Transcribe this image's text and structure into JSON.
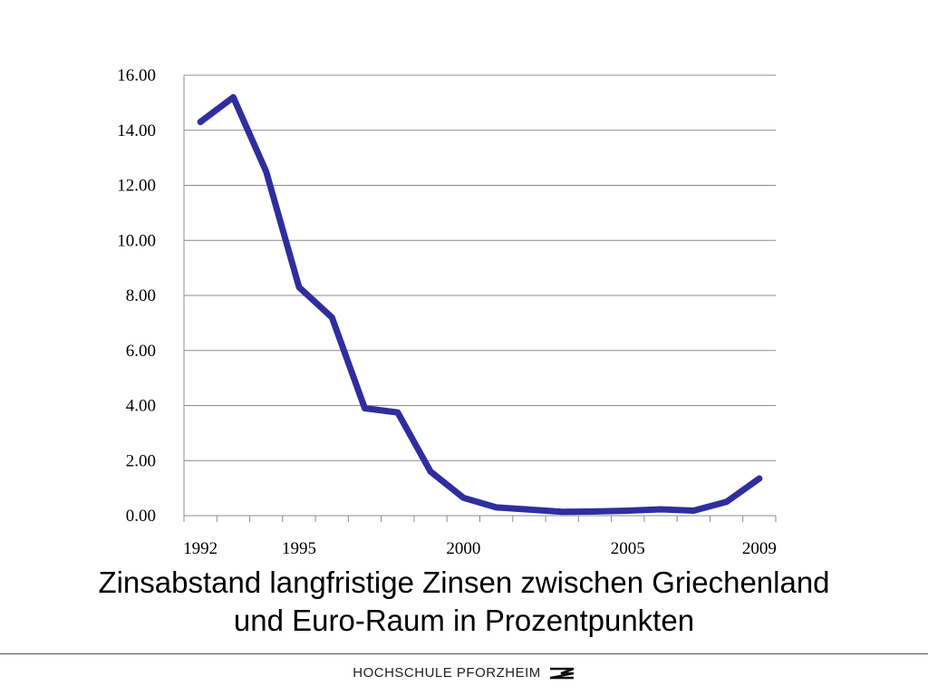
{
  "chart_data": {
    "type": "line",
    "x": [
      1992,
      1993,
      1994,
      1995,
      1996,
      1997,
      1998,
      1999,
      2000,
      2001,
      2002,
      2003,
      2004,
      2005,
      2006,
      2007,
      2008,
      2009
    ],
    "series": [
      {
        "values": [
          14.3,
          15.2,
          12.5,
          8.3,
          7.2,
          3.9,
          3.75,
          1.6,
          0.65,
          0.3,
          0.22,
          0.14,
          0.15,
          0.18,
          0.23,
          0.18,
          0.5,
          1.35
        ],
        "color": "#2e2e9e"
      }
    ],
    "ylim": [
      0,
      16
    ],
    "y_ticks": [
      "0.00",
      "2.00",
      "4.00",
      "6.00",
      "8.00",
      "10.00",
      "12.00",
      "14.00",
      "16.00"
    ],
    "x_tick_labels": [
      {
        "year": 1992,
        "label": "1992"
      },
      {
        "year": 1995,
        "label": "1995"
      },
      {
        "year": 2000,
        "label": "2000"
      },
      {
        "year": 2005,
        "label": "2005"
      },
      {
        "year": 2009,
        "label": "2009"
      }
    ],
    "grid": true,
    "legend": "none"
  },
  "caption": {
    "line1": "Zinsabstand langfristige Zinsen zwischen Griechenland",
    "line2": "und Euro-Raum in Prozentpunkten"
  },
  "footer": {
    "text": "HOCHSCHULE PFORZHEIM",
    "logo_icon": "pforzheim-logo-icon"
  }
}
